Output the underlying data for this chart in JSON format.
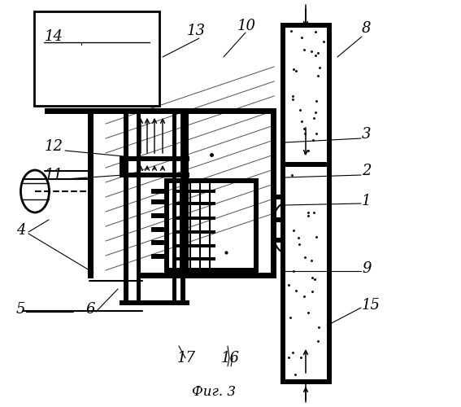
{
  "bg": "#ffffff",
  "title": "Фиг. 3",
  "fig_w": 5.67,
  "fig_h": 5.0,
  "dpi": 100
}
